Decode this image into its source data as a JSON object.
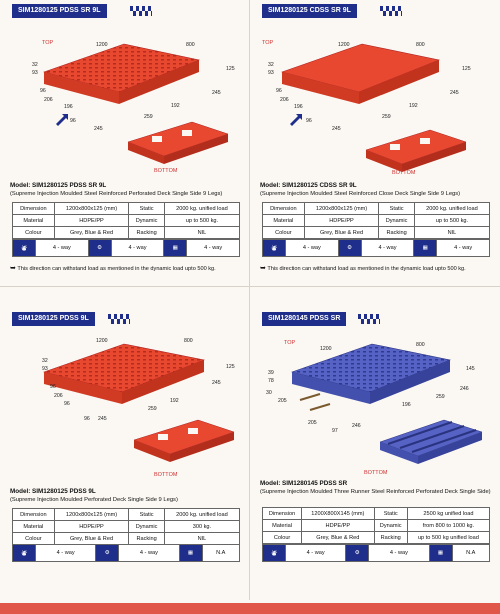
{
  "panels": [
    {
      "banner": "SIM1280125 PDSS SR 9L",
      "top_label": "TOP",
      "bottom_label": "BOTTOM",
      "dims": [
        "1200",
        "800",
        "32",
        "93",
        "125",
        "96",
        "206",
        "196",
        "245",
        "192",
        "259",
        "96",
        "245"
      ],
      "model": "Model: SIM1280125 PDSS SR 9L",
      "description": "(Supreme Injection Moulded Steel Reinforced Perforated Deck Single Side 9 Legs)",
      "rows": [
        [
          "Dimension",
          "1200x800x125 (mm)",
          "Static",
          "2000 kg. unified load"
        ],
        [
          "Material",
          "HDPE/PP",
          "Dynamic",
          "up to 500 kg."
        ],
        [
          "Colour",
          "Grey, Blue & Red",
          "Racking",
          "NIL"
        ]
      ],
      "way_a": "4 - way",
      "way_b": "4 - way",
      "way_c": "4 - way",
      "note": "This direction can withstand  load  as mentioned in the dynamic load upto 500 kg.",
      "color": "#e8482f"
    },
    {
      "banner": "SIM1280125 CDSS SR 9L",
      "top_label": "TOP",
      "bottom_label": "BOTTOM",
      "dims": [
        "1200",
        "800",
        "32",
        "93",
        "125",
        "96",
        "206",
        "196",
        "245",
        "192",
        "259",
        "96",
        "245"
      ],
      "model": "Model: SIM1280125 CDSS SR 9L",
      "description": "(Supreme Injection Moulded Steel Reinforced Close Deck Single Side 9 Legs)",
      "rows": [
        [
          "Dimension",
          "1200x800x125 (mm)",
          "Static",
          "2000 kg. unified load"
        ],
        [
          "Material",
          "HDPE/PP",
          "Dynamic",
          "up to 500 kg."
        ],
        [
          "Colour",
          "Grey, Blue & Red",
          "Racking",
          "NIL"
        ]
      ],
      "way_a": "4 - way",
      "way_b": "4 - way",
      "way_c": "4 - way",
      "note": "This direction can withstand  load  as mentioned in the dynamic load upto 500 kg.",
      "color": "#e8482f"
    },
    {
      "banner": "SIM1280125 PDSS 9L",
      "top_label": "",
      "bottom_label": "BOTTOM",
      "dims": [
        "1200",
        "800",
        "32",
        "93",
        "125",
        "96",
        "206",
        "96",
        "245",
        "192",
        "259",
        "96",
        "245"
      ],
      "model": "Model: SIM1280125 PDSS 9L",
      "description": "(Supreme Injection Moulded Perforated Deck Single Side 9 Legs)",
      "rows": [
        [
          "Dimension",
          "1200x800x125 (mm)",
          "Static",
          "2000 kg. unified load"
        ],
        [
          "Material",
          "HDPE/PP",
          "Dynamic",
          "300 kg."
        ],
        [
          "Colour",
          "Grey, Blue & Red",
          "Racking",
          "NIL"
        ]
      ],
      "way_a": "4 - way",
      "way_b": "4 - way",
      "way_c": "N.A",
      "note": "",
      "color": "#e8482f"
    },
    {
      "banner": "SIM1280145 PDSS SR",
      "top_label": "TOP",
      "bottom_label": "BOTTOM",
      "dims": [
        "1200",
        "800",
        "39",
        "78",
        "145",
        "30",
        "205",
        "196",
        "246",
        "259",
        "205",
        "97",
        "246"
      ],
      "model": "Model: SIM1280145 PDSS SR",
      "description": "(Supreme Injection Moulded Three Runner Steel Reinforced Perforated Deck Single Side)",
      "rows": [
        [
          "Dimension",
          "1200X800X145 (mm)",
          "Static",
          "2500 kg unified load"
        ],
        [
          "Material",
          "HDPE/PP",
          "Dynamic",
          "from 800 to 1000 kg."
        ],
        [
          "Colour",
          "Grey, Blue & Red",
          "Racking",
          "up to 500 kg unified load"
        ]
      ],
      "way_a": "4 - way",
      "way_b": "4 - way",
      "way_c": "N.A",
      "note": "",
      "color": "#4b57b8"
    }
  ]
}
